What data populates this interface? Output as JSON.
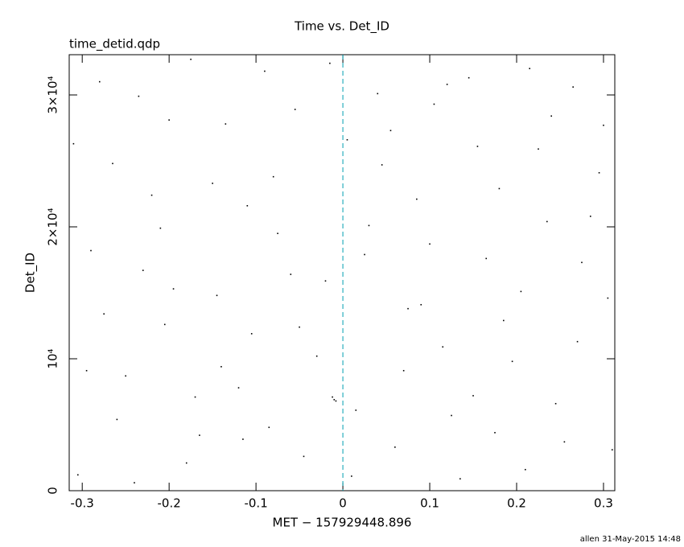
{
  "chart_data": {
    "type": "scatter",
    "title": "Time vs. Det_ID",
    "subtitle": "time_detid.qdp",
    "x_label": "MET − 157929448.896",
    "y_label": "Det_ID",
    "footer": "allen 31-May-2015 14:48",
    "color": "#000000",
    "vline": {
      "x": 0,
      "color": "#00a0b0"
    },
    "xlim": [
      -0.315,
      0.313
    ],
    "ylim": [
      0,
      33050
    ],
    "xticks": [
      -0.3,
      -0.2,
      -0.1,
      0,
      0.1,
      0.2,
      0.3
    ],
    "yticks": [
      0,
      {
        "value": 10000,
        "label": "10⁴"
      },
      {
        "value": 20000,
        "label": "2×10⁴"
      },
      {
        "value": 30000,
        "label": "3×10⁴"
      }
    ],
    "x": [
      -0.305,
      -0.28,
      -0.25,
      -0.22,
      -0.195,
      -0.165,
      -0.135,
      -0.105,
      -0.075,
      -0.045,
      -0.015,
      0.015,
      0.045,
      0.075,
      0.105,
      0.135,
      0.165,
      0.195,
      0.225,
      0.255,
      0.285,
      0.305,
      -0.29,
      -0.26,
      -0.235,
      -0.205,
      -0.18,
      -0.15,
      -0.12,
      -0.09,
      -0.06,
      -0.03,
      0.005,
      0.03,
      0.06,
      0.09,
      0.12,
      0.15,
      0.18,
      0.21,
      0.24,
      0.27,
      0.295,
      -0.31,
      -0.275,
      -0.24,
      -0.21,
      -0.175,
      -0.14,
      -0.11,
      -0.085,
      -0.055,
      -0.02,
      0.01,
      0.04,
      0.07,
      0.1,
      0.125,
      0.155,
      0.185,
      0.215,
      0.245,
      0.275,
      0.31,
      -0.295,
      -0.265,
      -0.23,
      -0.2,
      -0.17,
      -0.145,
      -0.115,
      -0.08,
      -0.05,
      -0.01,
      -0.012,
      -0.008,
      0.025,
      0.055,
      0.085,
      0.115,
      0.145,
      0.175,
      0.205,
      0.235,
      0.265,
      0.3
    ],
    "y": [
      1200,
      31000,
      8700,
      22400,
      15300,
      4200,
      27800,
      11900,
      19500,
      2600,
      32400,
      6100,
      24700,
      13800,
      29300,
      900,
      17600,
      9800,
      25900,
      3700,
      20800,
      14600,
      18200,
      5400,
      29900,
      12600,
      2100,
      23300,
      7800,
      31800,
      16400,
      10200,
      26600,
      20100,
      3300,
      14100,
      30800,
      7200,
      22900,
      1600,
      28400,
      11300,
      24100,
      26300,
      13400,
      600,
      19900,
      32700,
      9400,
      21600,
      4800,
      28900,
      15900,
      1100,
      30100,
      9100,
      18700,
      5700,
      26100,
      12900,
      32000,
      6600,
      17300,
      3100,
      9100,
      24800,
      16700,
      28100,
      7100,
      14800,
      3900,
      23800,
      12400,
      6900,
      7100,
      6800,
      17900,
      27300,
      22100,
      10900,
      31300,
      4400,
      15100,
      20400,
      30600,
      27700
    ]
  }
}
